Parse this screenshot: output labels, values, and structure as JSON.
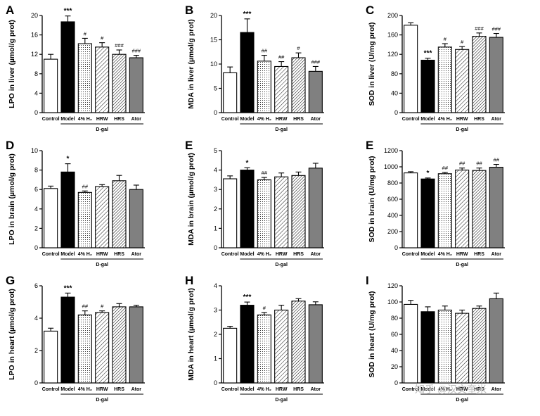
{
  "group_label": "D-gal",
  "categories": [
    "Control",
    "Model",
    "4% H₂",
    "HRW",
    "HRS",
    "Ator"
  ],
  "bar_colors": [
    "#ffffff",
    "#000000",
    "dots",
    "hatch",
    "hatch-dense",
    "#808080"
  ],
  "watermark": "知乎 @汉文奎米",
  "chart_data": [
    {
      "type": "bar",
      "panel": "A",
      "ylabel": "LPO in liver (µmol/g prot)",
      "ylim": [
        0,
        20
      ],
      "yticks": [
        0,
        4,
        8,
        12,
        16,
        20
      ],
      "values": [
        11.0,
        18.7,
        14.2,
        13.5,
        12.0,
        11.3
      ],
      "errors": [
        1.0,
        1.2,
        1.1,
        0.9,
        0.9,
        0.5
      ],
      "significance": [
        "",
        "***",
        "#",
        "#",
        "###",
        "###"
      ]
    },
    {
      "type": "bar",
      "panel": "B",
      "ylabel": "MDA in liver (µmol/g prot)",
      "ylim": [
        0,
        20
      ],
      "yticks": [
        0,
        5,
        10,
        15,
        20
      ],
      "values": [
        8.2,
        16.5,
        10.6,
        9.5,
        11.3,
        8.5
      ],
      "errors": [
        1.2,
        2.8,
        1.2,
        1.0,
        1.0,
        1.0
      ],
      "significance": [
        "",
        "***",
        "##",
        "##",
        "#",
        "###"
      ]
    },
    {
      "type": "bar",
      "panel": "C",
      "ylabel": "SOD in liver (U/mg prot)",
      "ylim": [
        0,
        200
      ],
      "yticks": [
        0,
        40,
        80,
        120,
        160,
        200
      ],
      "values": [
        180,
        108,
        135,
        130,
        157,
        155
      ],
      "errors": [
        5,
        4,
        7,
        6,
        7,
        8
      ],
      "significance": [
        "",
        "***",
        "#",
        "#",
        "###",
        "###"
      ]
    },
    {
      "type": "bar",
      "panel": "D",
      "ylabel": "LPO in brain (µmol/g prot)",
      "ylim": [
        0,
        10
      ],
      "yticks": [
        0,
        2,
        4,
        6,
        8,
        10
      ],
      "values": [
        6.1,
        7.8,
        5.7,
        6.3,
        6.9,
        6.0
      ],
      "errors": [
        0.25,
        0.85,
        0.15,
        0.2,
        0.55,
        0.45
      ],
      "significance": [
        "",
        "*",
        "##",
        "",
        "",
        ""
      ]
    },
    {
      "type": "bar",
      "panel": "E",
      "ylabel": "MDA in brain (µmol/g prot)",
      "ylim": [
        0,
        5
      ],
      "yticks": [
        0,
        1,
        2,
        3,
        4,
        5
      ],
      "values": [
        3.55,
        4.0,
        3.5,
        3.65,
        3.72,
        4.1
      ],
      "errors": [
        0.15,
        0.12,
        0.12,
        0.2,
        0.18,
        0.25
      ],
      "significance": [
        "",
        "*",
        "##",
        "",
        "",
        ""
      ]
    },
    {
      "type": "bar",
      "panel": "E",
      "ylabel": "SOD in brain (U/mg prot)",
      "ylim": [
        0,
        1200
      ],
      "yticks": [
        0,
        200,
        400,
        600,
        800,
        1000,
        1200
      ],
      "values": [
        925,
        850,
        915,
        960,
        955,
        995
      ],
      "errors": [
        15,
        12,
        15,
        25,
        30,
        35
      ],
      "significance": [
        "",
        "*",
        "##",
        "##",
        "##",
        "##"
      ]
    },
    {
      "type": "bar",
      "panel": "G",
      "ylabel": "LPO in heart (µmol/g prot)",
      "ylim": [
        0,
        6
      ],
      "yticks": [
        0,
        2,
        4,
        6
      ],
      "values": [
        3.2,
        5.3,
        4.2,
        4.35,
        4.7,
        4.7
      ],
      "errors": [
        0.18,
        0.25,
        0.25,
        0.1,
        0.2,
        0.1
      ],
      "significance": [
        "",
        "***",
        "##",
        "#",
        "",
        ""
      ]
    },
    {
      "type": "bar",
      "panel": "H",
      "ylabel": "MDA in heart (µmol/g prot)",
      "ylim": [
        0,
        4
      ],
      "yticks": [
        0,
        1,
        2,
        3,
        4
      ],
      "values": [
        2.25,
        3.2,
        2.8,
        3.0,
        3.37,
        3.22
      ],
      "errors": [
        0.08,
        0.13,
        0.1,
        0.2,
        0.1,
        0.12
      ],
      "significance": [
        "",
        "***",
        "#",
        "",
        "",
        ""
      ]
    },
    {
      "type": "bar",
      "panel": "I",
      "ylabel": "SOD in heart (U/mg prot)",
      "ylim": [
        0,
        120
      ],
      "yticks": [
        0,
        20,
        40,
        60,
        80,
        100,
        120
      ],
      "values": [
        97,
        88,
        90,
        86,
        92,
        104
      ],
      "errors": [
        5,
        6,
        5,
        4,
        3,
        7
      ],
      "significance": [
        "",
        "",
        "",
        "",
        "",
        ""
      ]
    }
  ]
}
